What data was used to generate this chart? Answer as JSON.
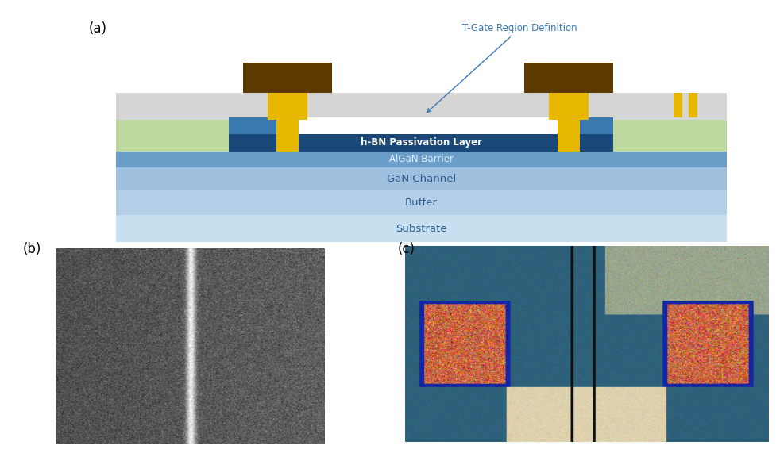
{
  "title_a": "(a)",
  "title_b": "(b)",
  "title_c": "(c)",
  "annotation_text": "T-Gate Region Definition",
  "bg_color": "#ffffff",
  "substrate_color": "#c8dff0",
  "buffer_color": "#b5cfe8",
  "gan_color": "#a0c0e0",
  "algan_color": "#6a9ec8",
  "hbn_color": "#1a4878",
  "sin3_color": "#3a78b0",
  "gray_sin_color": "#d5d5d5",
  "green_color": "#bdd9a0",
  "gate_yellow": "#e8b800",
  "gate_brown": "#5c3a00",
  "annotation_color": "#3a7ab8",
  "arrow_color": "#3a7ab8",
  "text_blue": "#2a5a8a"
}
